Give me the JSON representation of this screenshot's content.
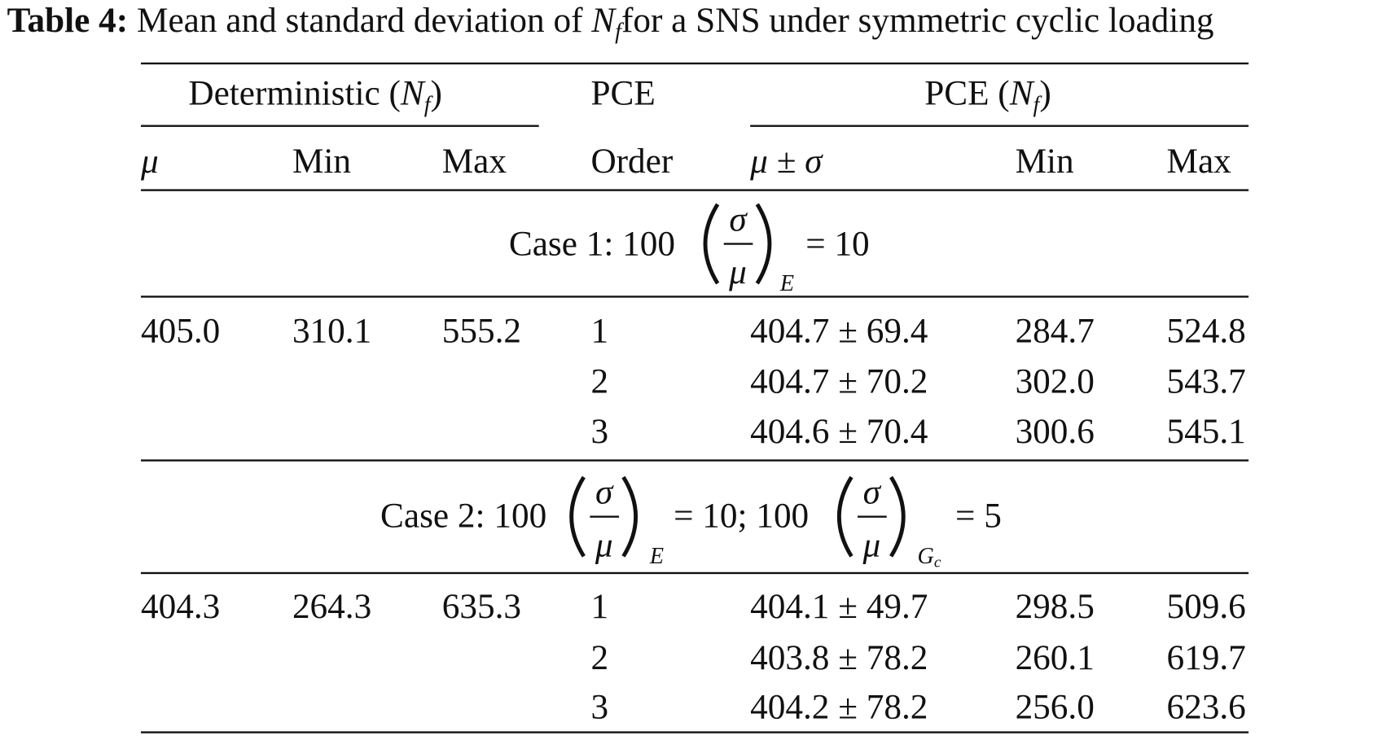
{
  "caption": {
    "label": "Table 4:",
    "text_before": "Mean and standard deviation of",
    "symbol": "N",
    "subscript": "f",
    "text_after": "for a SNS under symmetric cyclic loading"
  },
  "header": {
    "group1": {
      "text": "Deterministic (",
      "symbol": "N",
      "subscript": "f",
      "close": ")"
    },
    "pce": "PCE",
    "group2": {
      "text": "PCE (",
      "symbol": "N",
      "subscript": "f",
      "close": ")"
    },
    "columns": [
      "μ",
      "Min",
      "Max",
      "Order",
      "μ ± σ",
      "Min",
      "Max"
    ]
  },
  "cases": [
    {
      "title": [
        {
          "text": "Case 1: 100"
        },
        {
          "numerator": "σ",
          "denominator": "μ",
          "subscript": "E"
        },
        {
          "text": "= 10"
        }
      ],
      "deterministic": [
        "405.0",
        "310.1",
        "555.2"
      ],
      "pce": [
        [
          "1",
          "404.7 ± 69.4",
          "284.7",
          "524.8"
        ],
        [
          "2",
          "404.7 ± 70.2",
          "302.0",
          "543.7"
        ],
        [
          "3",
          "404.6 ± 70.4",
          "300.6",
          "545.1"
        ]
      ]
    },
    {
      "title": [
        {
          "text": "Case 2: 100"
        },
        {
          "numerator": "σ",
          "denominator": "μ",
          "subscript": "E"
        },
        {
          "text": "= 10; 100"
        },
        {
          "numerator": "σ",
          "denominator": "μ",
          "subscript": "G",
          "sub_subscript": "c"
        },
        {
          "text": "= 5"
        }
      ],
      "deterministic": [
        "404.3",
        "264.3",
        "635.3"
      ],
      "pce": [
        [
          "1",
          "404.1 ± 49.7",
          "298.5",
          "509.6"
        ],
        [
          "2",
          "403.8 ± 78.2",
          "260.1",
          "619.7"
        ],
        [
          "3",
          "404.2 ± 78.2",
          "256.0",
          "623.6"
        ]
      ]
    }
  ]
}
